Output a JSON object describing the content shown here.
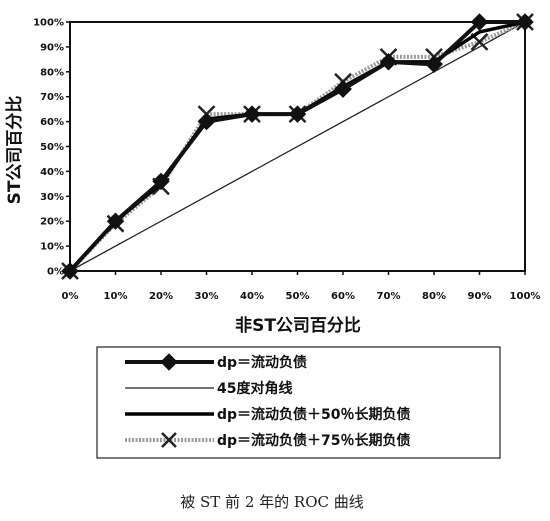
{
  "chart_data": {
    "type": "line",
    "title": "",
    "caption": "被 ST 前 2 年的 ROC 曲线",
    "xlabel": "非ST公司百分比",
    "ylabel": "ST公司百分比",
    "xlim": [
      0,
      100
    ],
    "ylim": [
      0,
      100
    ],
    "x_ticks": [
      "0%",
      "10%",
      "20%",
      "30%",
      "40%",
      "50%",
      "60%",
      "70%",
      "80%",
      "90%",
      "100%"
    ],
    "y_ticks": [
      "0%",
      "10%",
      "20%",
      "30%",
      "40%",
      "50%",
      "60%",
      "70%",
      "80%",
      "90%",
      "100%"
    ],
    "grid": false,
    "legend_position": "bottom",
    "series": [
      {
        "name": "dp＝流动负债",
        "color": "#111111",
        "marker": "diamond",
        "points": [
          [
            0,
            0
          ],
          [
            10,
            20
          ],
          [
            20,
            36
          ],
          [
            30,
            60
          ],
          [
            40,
            63
          ],
          [
            50,
            63
          ],
          [
            60,
            73
          ],
          [
            70,
            84
          ],
          [
            80,
            83
          ],
          [
            90,
            100
          ],
          [
            100,
            100
          ]
        ]
      },
      {
        "name": "45度对角线",
        "color": "#222222",
        "marker": "none",
        "points": [
          [
            0,
            0
          ],
          [
            100,
            100
          ]
        ]
      },
      {
        "name": "dp＝流动负债＋50％长期负债",
        "color": "#000000",
        "marker": "none",
        "points": [
          [
            0,
            0
          ],
          [
            10,
            20
          ],
          [
            20,
            35
          ],
          [
            30,
            61
          ],
          [
            40,
            63
          ],
          [
            50,
            63
          ],
          [
            60,
            74
          ],
          [
            70,
            84
          ],
          [
            80,
            84
          ],
          [
            90,
            96
          ],
          [
            100,
            100
          ]
        ]
      },
      {
        "name": "dp＝流动负债＋75％长期负债",
        "color": "#9a9a9a",
        "marker": "x",
        "points": [
          [
            0,
            0
          ],
          [
            10,
            19
          ],
          [
            20,
            34
          ],
          [
            30,
            63
          ],
          [
            40,
            63
          ],
          [
            50,
            63
          ],
          [
            60,
            76
          ],
          [
            70,
            86
          ],
          [
            80,
            86
          ],
          [
            90,
            92
          ],
          [
            100,
            100
          ]
        ]
      }
    ]
  }
}
